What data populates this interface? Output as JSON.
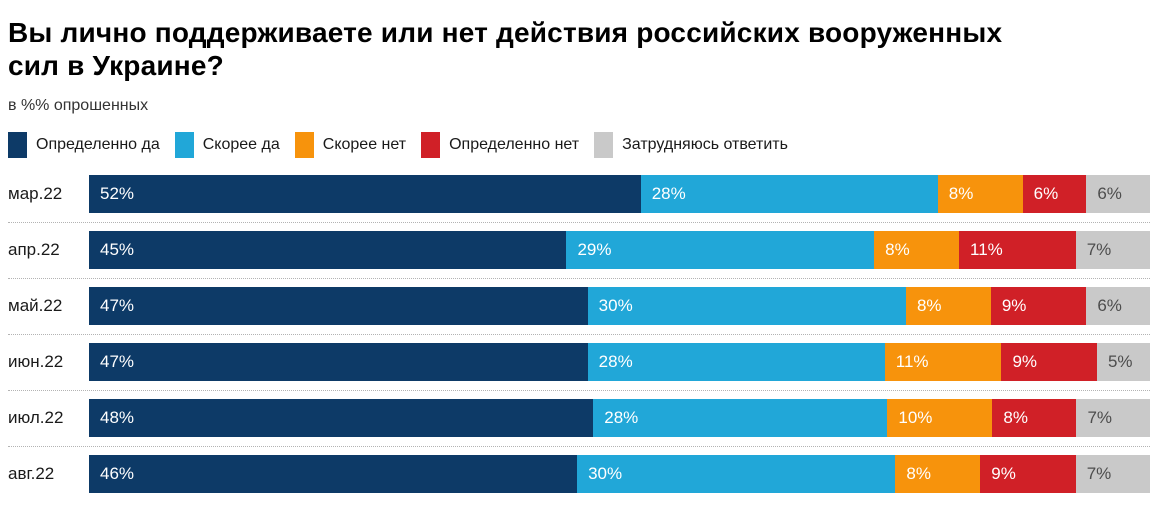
{
  "header": {
    "title": "Вы лично поддерживаете или нет действия российских вооруженных сил в Украине?",
    "subtitle": "в %% опрошенных"
  },
  "legend": {
    "items": [
      {
        "label": "Определенно да",
        "color": "#0d3a67"
      },
      {
        "label": "Скорее да",
        "color": "#21a7d8"
      },
      {
        "label": "Скорее нет",
        "color": "#f7930c"
      },
      {
        "label": "Определенно нет",
        "color": "#d02027"
      },
      {
        "label": "Затрудняюсь ответить",
        "color": "#c9c9c9"
      }
    ]
  },
  "chart_data": {
    "type": "bar",
    "orientation": "horizontal",
    "stacked": true,
    "unit": "%",
    "value_labels": true,
    "xlim": [
      0,
      100
    ],
    "grid": false,
    "legend_position": "top",
    "categories": [
      "мар.22",
      "апр.22",
      "май.22",
      "июн.22",
      "июл.22",
      "авг.22"
    ],
    "series": [
      {
        "name": "Определенно да",
        "color": "#0d3a67",
        "label_color": "#ffffff",
        "values": [
          52,
          45,
          47,
          47,
          48,
          46
        ]
      },
      {
        "name": "Скорее да",
        "color": "#21a7d8",
        "label_color": "#ffffff",
        "values": [
          28,
          29,
          30,
          28,
          28,
          30
        ]
      },
      {
        "name": "Скорее нет",
        "color": "#f7930c",
        "label_color": "#ffffff",
        "values": [
          8,
          8,
          8,
          11,
          10,
          8
        ]
      },
      {
        "name": "Определенно нет",
        "color": "#d02027",
        "label_color": "#ffffff",
        "values": [
          6,
          11,
          9,
          9,
          8,
          9
        ]
      },
      {
        "name": "Затрудняюсь ответить",
        "color": "#c9c9c9",
        "label_color": "#4d4d4d",
        "values": [
          6,
          7,
          6,
          5,
          7,
          7
        ]
      }
    ]
  }
}
